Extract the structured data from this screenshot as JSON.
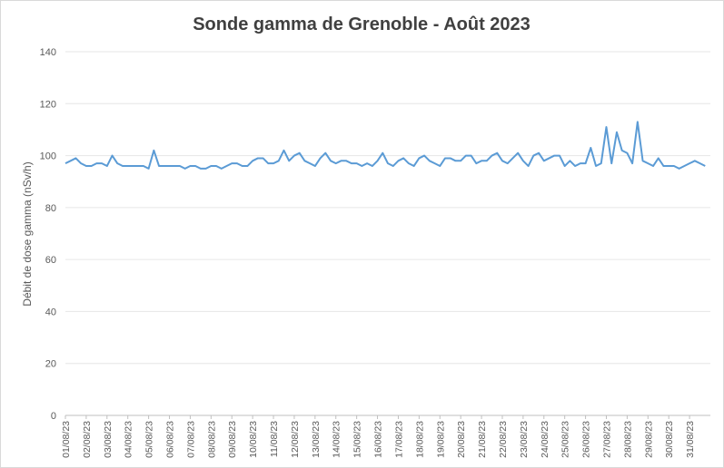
{
  "chart_data": {
    "type": "line",
    "title": "Sonde gamma de Grenoble - Août 2023",
    "y_label": "Débit de dose gamma (nSv/h)",
    "categories": [
      "01/08/23",
      null,
      null,
      null,
      "02/08/23",
      null,
      null,
      null,
      "03/08/23",
      null,
      null,
      null,
      "04/08/23",
      null,
      null,
      null,
      "05/08/23",
      null,
      null,
      null,
      "06/08/23",
      null,
      null,
      null,
      "07/08/23",
      null,
      null,
      null,
      "08/08/23",
      null,
      null,
      null,
      "09/08/23",
      null,
      null,
      null,
      "10/08/23",
      null,
      null,
      null,
      "11/08/23",
      null,
      null,
      null,
      "12/08/23",
      null,
      null,
      null,
      "13/08/23",
      null,
      null,
      null,
      "14/08/23",
      null,
      null,
      null,
      "15/08/23",
      null,
      null,
      null,
      "16/08/23",
      null,
      null,
      null,
      "17/08/23",
      null,
      null,
      null,
      "18/08/23",
      null,
      null,
      null,
      "19/08/23",
      null,
      null,
      null,
      "20/08/23",
      null,
      null,
      null,
      "21/08/23",
      null,
      null,
      null,
      "22/08/23",
      null,
      null,
      null,
      "23/08/23",
      null,
      null,
      null,
      "24/08/23",
      null,
      null,
      null,
      "25/08/23",
      null,
      null,
      null,
      "26/08/23",
      null,
      null,
      null,
      "27/08/23",
      null,
      null,
      null,
      "28/08/23",
      null,
      null,
      null,
      "29/08/23",
      null,
      null,
      null,
      "30/08/23",
      null,
      null,
      null,
      "31/08/23",
      null,
      null,
      null
    ],
    "series": [
      {
        "name": "Débit de dose",
        "color": "#5b9bd5",
        "values": [
          97,
          98,
          99,
          97,
          96,
          96,
          97,
          97,
          96,
          100,
          97,
          96,
          96,
          96,
          96,
          96,
          95,
          102,
          96,
          96,
          96,
          96,
          96,
          95,
          96,
          96,
          95,
          95,
          96,
          96,
          95,
          96,
          97,
          97,
          96,
          96,
          98,
          99,
          99,
          97,
          97,
          98,
          102,
          98,
          100,
          101,
          98,
          97,
          96,
          99,
          101,
          98,
          97,
          98,
          98,
          97,
          97,
          96,
          97,
          96,
          98,
          101,
          97,
          96,
          98,
          99,
          97,
          96,
          99,
          100,
          98,
          97,
          96,
          99,
          99,
          98,
          98,
          100,
          100,
          97,
          98,
          98,
          100,
          101,
          98,
          97,
          99,
          101,
          98,
          96,
          100,
          101,
          98,
          99,
          100,
          100,
          96,
          98,
          96,
          97,
          97,
          103,
          96,
          97,
          111,
          97,
          109,
          102,
          101,
          97,
          113,
          98,
          97,
          96,
          99,
          96,
          96,
          96,
          95,
          96,
          97,
          98,
          97,
          96
        ]
      }
    ],
    "ylim": [
      0,
      140
    ],
    "yticks": [
      0,
      20,
      40,
      60,
      80,
      100,
      120,
      140
    ],
    "grid": true
  }
}
